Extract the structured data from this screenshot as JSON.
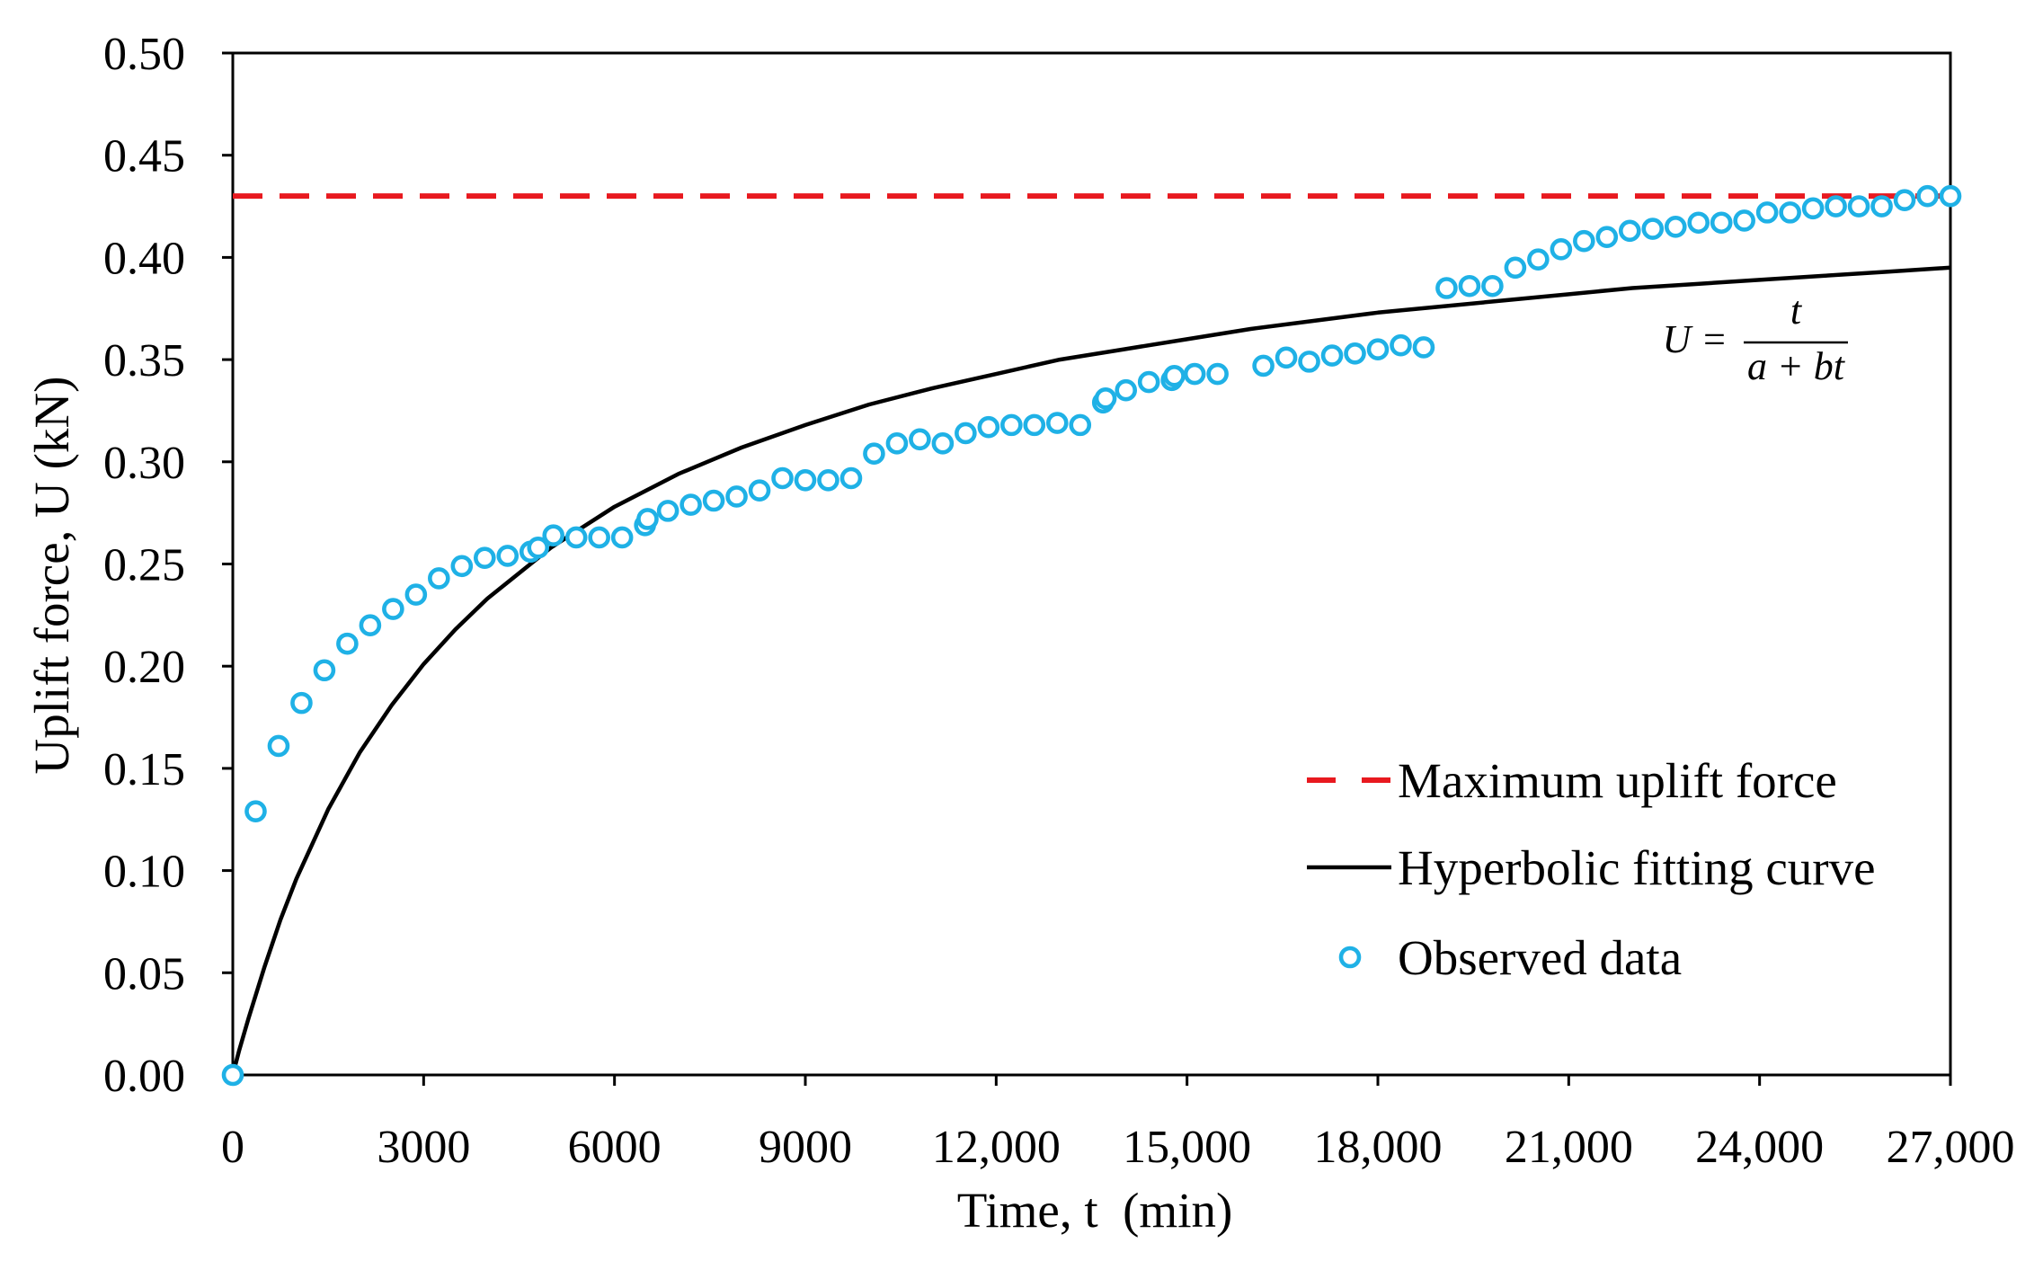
{
  "chart_data": {
    "type": "scatter",
    "xlabel": "Time, t  (min)",
    "ylabel": "Uplift force, U (kN)",
    "xlim": [
      0,
      27000
    ],
    "ylim": [
      0,
      0.5
    ],
    "x_ticks": [
      0,
      3000,
      6000,
      9000,
      12000,
      15000,
      18000,
      21000,
      24000,
      27000
    ],
    "x_tick_labels": [
      "0",
      "3000",
      "6000",
      "9000",
      "12,000",
      "15,000",
      "18,000",
      "21,000",
      "24,000",
      "27,000"
    ],
    "y_ticks": [
      0,
      0.05,
      0.1,
      0.15,
      0.2,
      0.25,
      0.3,
      0.35,
      0.4,
      0.45,
      0.5
    ],
    "y_tick_labels": [
      "0.00",
      "0.05",
      "0.10",
      "0.15",
      "0.20",
      "0.25",
      "0.30",
      "0.35",
      "0.40",
      "0.45",
      "0.50"
    ],
    "grid": false,
    "legend_position": "lower-right",
    "series": [
      {
        "name": "Maximum uplift force",
        "color": "#e8191f",
        "line": true,
        "dashed": true,
        "markers": false,
        "x": [
          0,
          27000
        ],
        "y": [
          0.43,
          0.43
        ]
      },
      {
        "name": "Hyperbolic fitting curve",
        "color": "#000000",
        "line": true,
        "dashed": false,
        "markers": false,
        "x": [
          0,
          100,
          250,
          500,
          750,
          1000,
          1500,
          2000,
          2500,
          3000,
          3500,
          4000,
          5000,
          6000,
          7000,
          8000,
          9000,
          10000,
          11000,
          12000,
          13000,
          14000,
          15000,
          16000,
          17000,
          18000,
          19000,
          20000,
          21000,
          22000,
          23000,
          24000,
          25000,
          26000,
          27000
        ],
        "y": [
          0,
          0.012,
          0.028,
          0.053,
          0.076,
          0.096,
          0.13,
          0.158,
          0.181,
          0.201,
          0.218,
          0.233,
          0.258,
          0.278,
          0.294,
          0.307,
          0.318,
          0.328,
          0.336,
          0.343,
          0.35,
          0.355,
          0.36,
          0.365,
          0.369,
          0.373,
          0.376,
          0.379,
          0.382,
          0.385,
          0.387,
          0.389,
          0.391,
          0.393,
          0.395
        ]
      },
      {
        "name": "Observed data",
        "color": "#1fb1e6",
        "line": false,
        "dashed": false,
        "markers": true,
        "x": [
          0,
          360,
          720,
          1080,
          1440,
          1800,
          2160,
          2520,
          2880,
          3240,
          3600,
          3960,
          4320,
          4680,
          4800,
          5040,
          5400,
          5760,
          6120,
          6480,
          6520,
          6840,
          7200,
          7560,
          7920,
          8280,
          8640,
          9000,
          9360,
          9720,
          10080,
          10440,
          10800,
          11160,
          11520,
          11880,
          12240,
          12600,
          12960,
          13320,
          13680,
          13720,
          14040,
          14400,
          14760,
          14800,
          15120,
          15480,
          16200,
          16560,
          16920,
          17280,
          17640,
          18000,
          18360,
          18720,
          19080,
          19440,
          19800,
          20160,
          20520,
          20880,
          21240,
          21600,
          21960,
          22320,
          22680,
          23040,
          23400,
          23760,
          24120,
          24480,
          24840,
          25200,
          25560,
          25920,
          26280,
          26640,
          27000
        ],
        "y": [
          0.0,
          0.129,
          0.161,
          0.182,
          0.198,
          0.211,
          0.22,
          0.228,
          0.235,
          0.243,
          0.249,
          0.253,
          0.254,
          0.256,
          0.258,
          0.264,
          0.263,
          0.263,
          0.263,
          0.269,
          0.272,
          0.276,
          0.279,
          0.281,
          0.283,
          0.286,
          0.292,
          0.291,
          0.291,
          0.292,
          0.304,
          0.309,
          0.311,
          0.309,
          0.314,
          0.317,
          0.318,
          0.318,
          0.319,
          0.318,
          0.329,
          0.331,
          0.335,
          0.339,
          0.34,
          0.342,
          0.343,
          0.343,
          0.347,
          0.351,
          0.349,
          0.352,
          0.353,
          0.355,
          0.357,
          0.356,
          0.385,
          0.386,
          0.386,
          0.395,
          0.399,
          0.404,
          0.408,
          0.41,
          0.413,
          0.414,
          0.415,
          0.417,
          0.417,
          0.418,
          0.422,
          0.422,
          0.424,
          0.425,
          0.425,
          0.425,
          0.428,
          0.43,
          0.43
        ]
      }
    ],
    "annotations": [
      {
        "lhs": "U =",
        "numerator": "t",
        "denominator": "a + bt"
      }
    ]
  }
}
